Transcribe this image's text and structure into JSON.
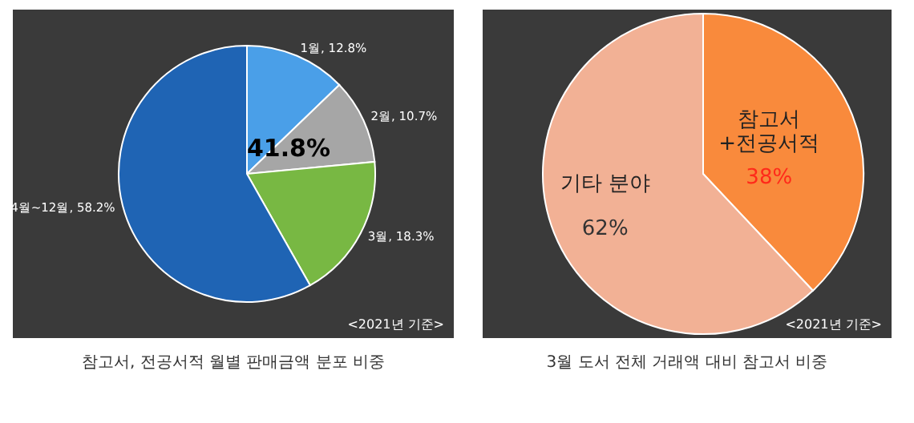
{
  "chart_data": [
    {
      "type": "pie",
      "title": "참고서, 전공서적 월별 판매금액 분포 비중",
      "categories": [
        "1월",
        "2월",
        "3월",
        "4월~12월"
      ],
      "values": [
        12.8,
        10.7,
        18.3,
        58.2
      ],
      "colors": [
        "#4a9fe8",
        "#a6a6a6",
        "#78b843",
        "#1f64b4"
      ],
      "value_labels": [
        "12.8%",
        "10.7%",
        "18.3%",
        "58.2%"
      ],
      "annotations": [
        "41.8%",
        "<2021년 기준>"
      ]
    },
    {
      "type": "pie",
      "title": "3월 도서 전체 거래액 대비 참고서 비중",
      "categories": [
        "참고서\n+전공서적",
        "기타 분야"
      ],
      "values": [
        38,
        62
      ],
      "colors": [
        "#f98a3c",
        "#f2b195"
      ],
      "value_labels": [
        "38%",
        "62%"
      ],
      "annotations": [
        "<2021년 기준>"
      ]
    }
  ]
}
